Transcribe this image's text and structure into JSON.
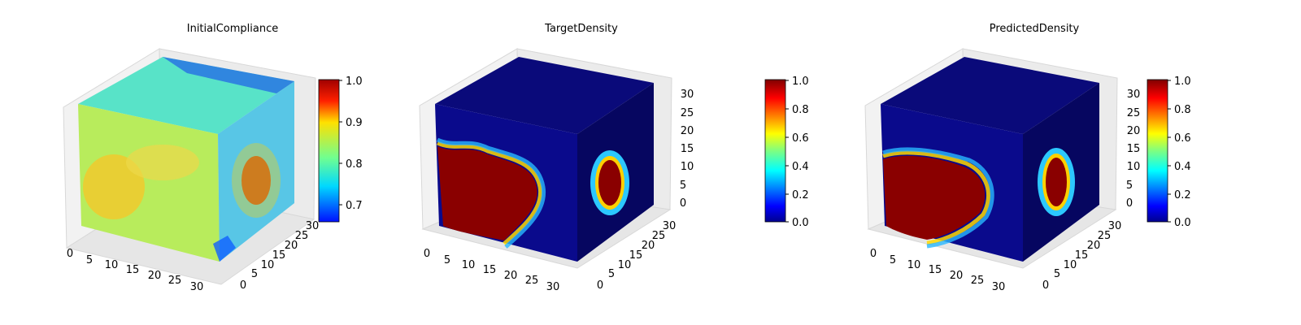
{
  "chart_data": [
    {
      "type": "heatmap",
      "subtype": "3d-voxel",
      "title": "InitialCompliance",
      "x_ticks": [
        "0",
        "5",
        "10",
        "15",
        "20",
        "25",
        "30"
      ],
      "y_ticks": [
        "0",
        "5",
        "10",
        "15",
        "20",
        "25",
        "30"
      ],
      "z_ticks": [],
      "colormap": "jet",
      "colorbar": {
        "range": [
          0.66,
          1.0
        ],
        "ticks": [
          "0.7",
          "0.8",
          "0.9",
          "1.0"
        ],
        "tick_values": [
          0.7,
          0.8,
          0.9,
          1.0
        ]
      },
      "legend": "colorbar right",
      "grid": true
    },
    {
      "type": "heatmap",
      "subtype": "3d-voxel",
      "title": "TargetDensity",
      "x_ticks": [
        "0",
        "5",
        "10",
        "15",
        "20",
        "25",
        "30"
      ],
      "y_ticks": [
        "0",
        "5",
        "10",
        "15",
        "20",
        "25",
        "30"
      ],
      "z_ticks": [
        "0",
        "5",
        "10",
        "15",
        "20",
        "25",
        "30"
      ],
      "colormap": "jet",
      "colorbar": {
        "range": [
          0.0,
          1.0
        ],
        "ticks": [
          "0.0",
          "0.2",
          "0.4",
          "0.6",
          "0.8",
          "1.0"
        ],
        "tick_values": [
          0.0,
          0.2,
          0.4,
          0.6,
          0.8,
          1.0
        ]
      },
      "legend": "colorbar right",
      "grid": true
    },
    {
      "type": "heatmap",
      "subtype": "3d-voxel",
      "title": "PredictedDensity",
      "x_ticks": [
        "0",
        "5",
        "10",
        "15",
        "20",
        "25",
        "30"
      ],
      "y_ticks": [
        "0",
        "5",
        "10",
        "15",
        "20",
        "25",
        "30"
      ],
      "z_ticks": [
        "0",
        "5",
        "10",
        "15",
        "20",
        "25",
        "30"
      ],
      "colormap": "jet",
      "colorbar": {
        "range": [
          0.0,
          1.0
        ],
        "ticks": [
          "0.0",
          "0.2",
          "0.4",
          "0.6",
          "0.8",
          "1.0"
        ],
        "tick_values": [
          0.0,
          0.2,
          0.4,
          0.6,
          0.8,
          1.0
        ]
      },
      "legend": "colorbar right",
      "grid": true
    }
  ]
}
